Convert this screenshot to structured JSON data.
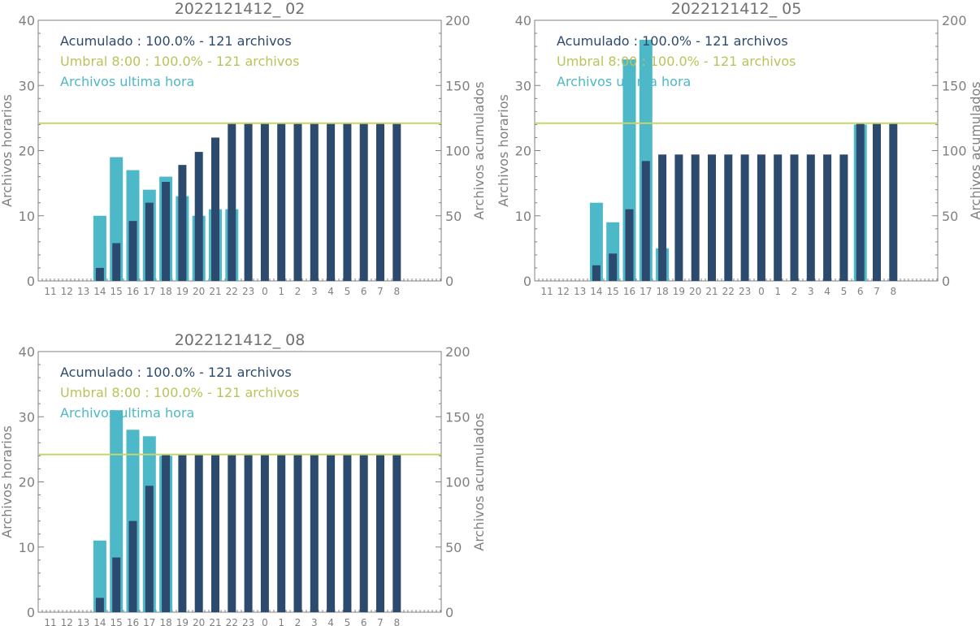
{
  "colors": {
    "hourly": "#4db8c8",
    "cumulative": "#2c4a6e",
    "threshold": "#c8d46a",
    "axis": "#808080",
    "text_accum": "#2c4a6e",
    "text_umbral": "#b8c45a",
    "text_hourly": "#4db8c8",
    "title": "#707070"
  },
  "chart_data": [
    {
      "type": "bar",
      "title": "2022121412_ 02",
      "ylabel": "Archivos horarios",
      "y2label": "Archivos acumulados",
      "ylim": [
        0,
        40
      ],
      "y2lim": [
        0,
        200
      ],
      "yticks": [
        "0",
        "10",
        "20",
        "30",
        "40"
      ],
      "y2ticks": [
        "0",
        "50",
        "100",
        "150",
        "200"
      ],
      "categories": [
        "11",
        "12",
        "13",
        "14",
        "15",
        "16",
        "17",
        "18",
        "19",
        "20",
        "21",
        "22",
        "23",
        "0",
        "1",
        "2",
        "3",
        "4",
        "5",
        "6",
        "7",
        "8"
      ],
      "legend": [
        "Acumulado : 100.0% - 121 archivos",
        "Umbral 8:00 : 100.0% - 121 archivos",
        "Archivos ultima hora"
      ],
      "threshold": 121,
      "series": [
        {
          "name": "Archivos ultima hora",
          "axis": "left",
          "values": [
            0,
            0,
            0,
            10,
            19,
            17,
            14,
            16,
            13,
            10,
            11,
            11,
            0,
            0,
            0,
            0,
            0,
            0,
            0,
            0,
            0,
            0
          ]
        },
        {
          "name": "Acumulado",
          "axis": "right",
          "values": [
            0,
            0,
            0,
            10,
            29,
            46,
            60,
            76,
            89,
            99,
            110,
            121,
            121,
            121,
            121,
            121,
            121,
            121,
            121,
            121,
            121,
            121
          ]
        }
      ]
    },
    {
      "type": "bar",
      "title": "2022121412_ 05",
      "ylabel": "Archivos horarios",
      "y2label": "Archivos acumulados",
      "ylim": [
        0,
        40
      ],
      "y2lim": [
        0,
        200
      ],
      "yticks": [
        "0",
        "10",
        "20",
        "30",
        "40"
      ],
      "y2ticks": [
        "0",
        "50",
        "100",
        "150",
        "200"
      ],
      "categories": [
        "11",
        "12",
        "13",
        "14",
        "15",
        "16",
        "17",
        "18",
        "19",
        "20",
        "21",
        "22",
        "23",
        "0",
        "1",
        "2",
        "3",
        "4",
        "5",
        "6",
        "7",
        "8"
      ],
      "legend": [
        "Acumulado : 100.0% - 121 archivos",
        "Umbral 8:00 : 100.0% - 121 archivos",
        "Archivos ultima hora"
      ],
      "threshold": 121,
      "series": [
        {
          "name": "Archivos ultima hora",
          "axis": "left",
          "values": [
            0,
            0,
            0,
            12,
            9,
            34,
            37,
            5,
            0,
            0,
            0,
            0,
            0,
            0,
            0,
            0,
            0,
            0,
            0,
            24,
            0,
            0
          ]
        },
        {
          "name": "Acumulado",
          "axis": "right",
          "values": [
            0,
            0,
            0,
            12,
            21,
            55,
            92,
            97,
            97,
            97,
            97,
            97,
            97,
            97,
            97,
            97,
            97,
            97,
            97,
            121,
            121,
            121
          ]
        }
      ]
    },
    {
      "type": "bar",
      "title": "2022121412_ 08",
      "ylabel": "Archivos horarios",
      "y2label": "Archivos acumulados",
      "ylim": [
        0,
        40
      ],
      "y2lim": [
        0,
        200
      ],
      "yticks": [
        "0",
        "10",
        "20",
        "30",
        "40"
      ],
      "y2ticks": [
        "0",
        "50",
        "100",
        "150",
        "200"
      ],
      "categories": [
        "11",
        "12",
        "13",
        "14",
        "15",
        "16",
        "17",
        "18",
        "19",
        "20",
        "21",
        "22",
        "23",
        "0",
        "1",
        "2",
        "3",
        "4",
        "5",
        "6",
        "7",
        "8"
      ],
      "legend": [
        "Acumulado : 100.0% - 121 archivos",
        "Umbral 8:00 : 100.0% - 121 archivos",
        "Archivos ultima hora"
      ],
      "threshold": 121,
      "series": [
        {
          "name": "Archivos ultima hora",
          "axis": "left",
          "values": [
            0,
            0,
            0,
            11,
            31,
            28,
            27,
            24,
            0,
            0,
            0,
            0,
            0,
            0,
            0,
            0,
            0,
            0,
            0,
            0,
            0,
            0
          ]
        },
        {
          "name": "Acumulado",
          "axis": "right",
          "values": [
            0,
            0,
            0,
            11,
            42,
            70,
            97,
            121,
            121,
            121,
            121,
            121,
            121,
            121,
            121,
            121,
            121,
            121,
            121,
            121,
            121,
            121
          ]
        }
      ]
    }
  ]
}
